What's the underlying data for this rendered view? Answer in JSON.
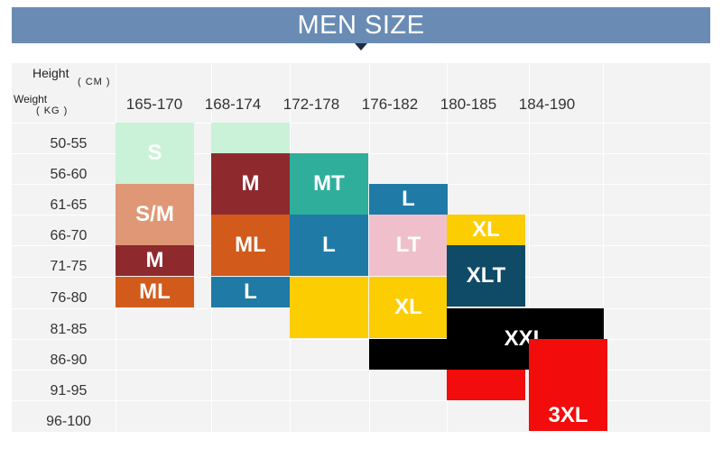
{
  "title": "MEN SIZE",
  "corner": {
    "height_label": "Height",
    "height_unit": "( CM )",
    "weight_label": "Weight",
    "weight_unit": "( KG )"
  },
  "height_ranges": [
    "165-170",
    "168-174",
    "172-178",
    "176-182",
    "180-185",
    "184-190"
  ],
  "weight_ranges": [
    "50-55",
    "56-60",
    "61-65",
    "66-70",
    "71-75",
    "76-80",
    "81-85",
    "86-90",
    "91-95",
    "96-100"
  ],
  "cells": [
    {
      "id": "s-165",
      "label": "S",
      "color": "#c9f2d8",
      "col": 0,
      "row": 0,
      "colspan": 1,
      "rowspan": 2
    },
    {
      "id": "s-168",
      "label": "",
      "color": "#c9f2d8",
      "col": 1,
      "row": 0,
      "colspan": 1,
      "rowspan": 1
    },
    {
      "id": "sm-165",
      "label": "S/M",
      "color": "#df9775",
      "col": 0,
      "row": 2,
      "colspan": 1,
      "rowspan": 2
    },
    {
      "id": "m-165",
      "label": "M",
      "color": "#8e2a2e",
      "col": 0,
      "row": 4,
      "colspan": 1,
      "rowspan": 1
    },
    {
      "id": "ml-165",
      "label": "ML",
      "color": "#d25a1b",
      "col": 0,
      "row": 5,
      "colspan": 1,
      "rowspan": 1
    },
    {
      "id": "m-168",
      "label": "M",
      "color": "#8e2a2e",
      "col": 1,
      "row": 1,
      "colspan": 1,
      "rowspan": 2
    },
    {
      "id": "ml-168",
      "label": "ML",
      "color": "#d25a1b",
      "col": 1,
      "row": 3,
      "colspan": 1,
      "rowspan": 2
    },
    {
      "id": "l-168",
      "label": "L",
      "color": "#1f7aa6",
      "col": 1,
      "row": 5,
      "colspan": 1,
      "rowspan": 1
    },
    {
      "id": "mt-172",
      "label": "MT",
      "color": "#2fae9c",
      "col": 2,
      "row": 1,
      "colspan": 1,
      "rowspan": 2
    },
    {
      "id": "l-172",
      "label": "L",
      "color": "#1f7aa6",
      "col": 2,
      "row": 3,
      "colspan": 1,
      "rowspan": 2
    },
    {
      "id": "y-172",
      "label": "",
      "color": "#fccd00",
      "col": 2,
      "row": 5,
      "colspan": 1,
      "rowspan": 2
    },
    {
      "id": "l-176",
      "label": "L",
      "color": "#1f7aa6",
      "col": 3,
      "row": 2,
      "colspan": 1,
      "rowspan": 1
    },
    {
      "id": "lt-176",
      "label": "LT",
      "color": "#efc0cb",
      "col": 3,
      "row": 3,
      "colspan": 1,
      "rowspan": 2
    },
    {
      "id": "xl-176",
      "label": "XL",
      "color": "#fccd00",
      "col": 3,
      "row": 5,
      "colspan": 1,
      "rowspan": 2
    },
    {
      "id": "blk-176",
      "label": "",
      "color": "#000000",
      "col": 3,
      "row": 7,
      "colspan": 1,
      "rowspan": 1
    },
    {
      "id": "xl-180",
      "label": "XL",
      "color": "#fccd00",
      "col": 4,
      "row": 3,
      "colspan": 1,
      "rowspan": 1
    },
    {
      "id": "xlt-180",
      "label": "XLT",
      "color": "#0f4a67",
      "col": 4,
      "row": 4,
      "colspan": 1,
      "rowspan": 2
    },
    {
      "id": "xxl",
      "label": "XXL",
      "color": "#000000",
      "col": 4,
      "row": 6,
      "colspan": 2,
      "rowspan": 2
    },
    {
      "id": "red-180",
      "label": "",
      "color": "#f20c0c",
      "col": 4,
      "row": 8,
      "colspan": 1,
      "rowspan": 1
    },
    {
      "id": "red-184",
      "label": "",
      "color": "#f20c0c",
      "col": 5,
      "row": 7,
      "colspan": 1,
      "rowspan": 2
    },
    {
      "id": "xxxl",
      "label": "3XL",
      "color": "#f20c0c",
      "col": 5,
      "row": 9,
      "colspan": 1,
      "rowspan": 1
    }
  ]
}
